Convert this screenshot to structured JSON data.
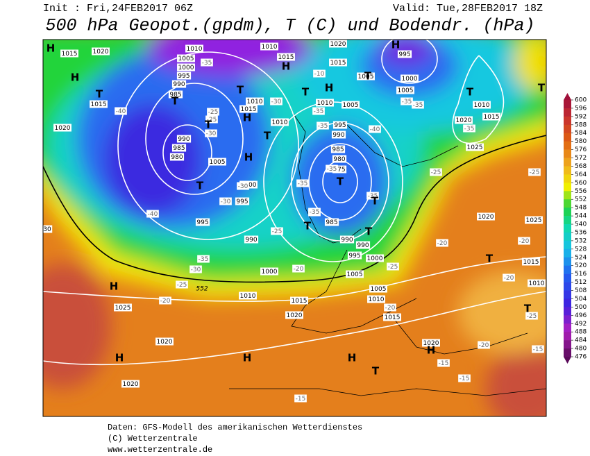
{
  "header": {
    "init": "Init : Fri,24FEB2017 06Z",
    "valid": "Valid: Tue,28FEB2017 18Z",
    "title": "500 hPa Geopot.(gpdm), T (C) und Bodendr. (hPa)"
  },
  "colorbar": {
    "ticks": [
      600,
      596,
      592,
      588,
      584,
      580,
      576,
      572,
      568,
      564,
      560,
      556,
      552,
      548,
      544,
      540,
      536,
      532,
      528,
      524,
      520,
      516,
      512,
      508,
      504,
      500,
      496,
      492,
      488,
      484,
      480,
      476
    ]
  },
  "map": {
    "pressure_labels": [
      1015,
      1020,
      1010,
      1010,
      1015,
      1020,
      1015,
      995,
      1005,
      1000,
      995,
      990,
      985,
      1010,
      1015,
      1010,
      1015,
      1020,
      1005,
      1000,
      1005,
      1010,
      1005,
      995,
      990,
      985,
      980,
      975,
      990,
      985,
      980,
      1005,
      1000,
      995,
      995,
      990,
      985,
      990,
      990,
      995,
      1000,
      1000,
      1005,
      1005,
      1010,
      1015,
      1010,
      1015,
      1020,
      1025,
      1020,
      1020,
      1020,
      1025,
      1020,
      1025,
      1015,
      1010,
      1010,
      1020,
      1015,
      30
    ],
    "temperature_labels": [
      -35,
      -10,
      -30,
      -25,
      -40,
      -30,
      -25,
      -35,
      -35,
      -35,
      -35,
      -35,
      -40,
      -35,
      -30,
      -40,
      -35,
      -30,
      -25,
      -35,
      -30,
      -25,
      -35,
      -25,
      -20,
      -20,
      -25,
      -20,
      -20,
      -25,
      -20,
      -20,
      -15,
      -15,
      -15,
      -15,
      -20,
      -25,
      -35,
      -35
    ],
    "contour_label": "552",
    "centers": [
      "H",
      "H",
      "T",
      "T",
      "T",
      "H",
      "H",
      "T",
      "T",
      "H",
      "T",
      "T",
      "T",
      "T",
      "T",
      "T",
      "T",
      "H",
      "H",
      "H",
      "H",
      "T",
      "H",
      "T",
      "H",
      "T",
      "T",
      "T",
      "H"
    ]
  },
  "footer": {
    "lines": [
      "Daten: GFS-Modell des amerikanischen Wetterdienstes",
      "(C) Wetterzentrale",
      "www.wetterzentrale.de"
    ]
  }
}
